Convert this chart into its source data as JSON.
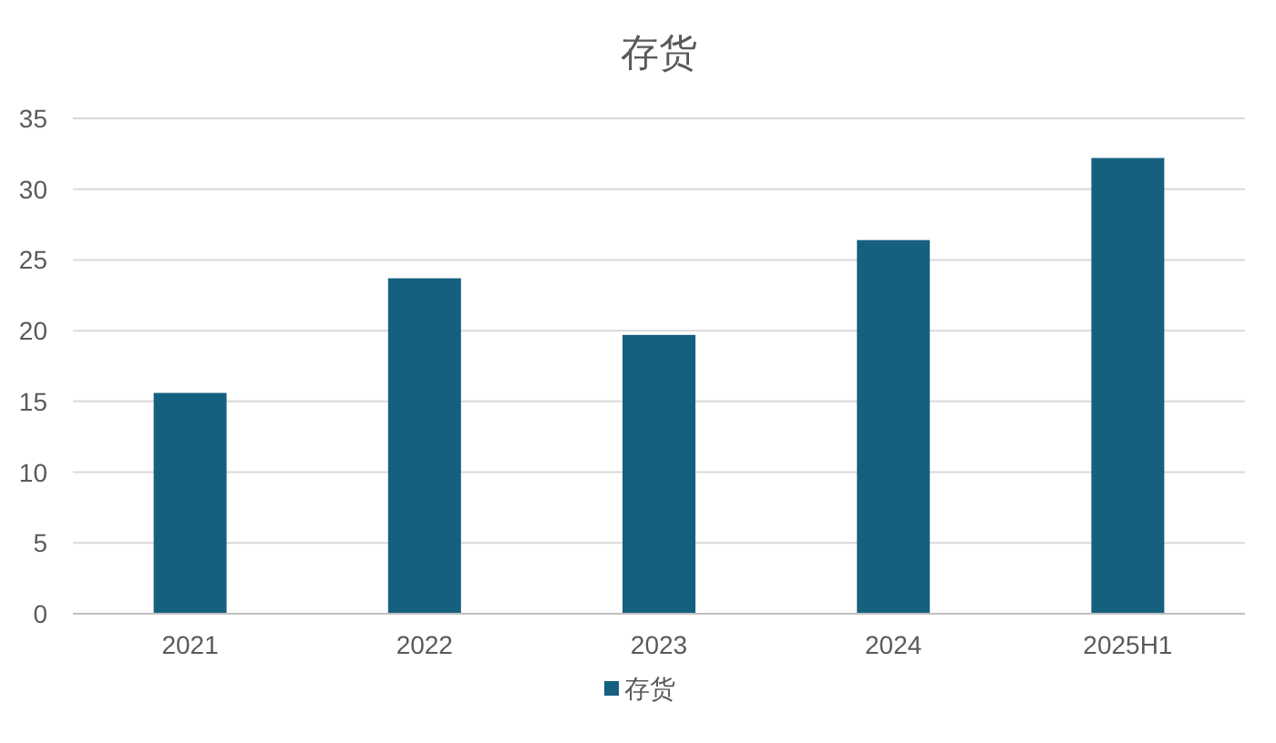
{
  "chart_data": {
    "type": "bar",
    "title": "存货",
    "categories": [
      "2021",
      "2022",
      "2023",
      "2024",
      "2025H1"
    ],
    "series": [
      {
        "name": "存货",
        "color": "#16607f",
        "values": [
          15.6,
          23.7,
          19.7,
          26.4,
          32.2
        ]
      }
    ],
    "ylim": [
      0,
      35
    ],
    "yticks": [
      0,
      5,
      10,
      15,
      20,
      25,
      30,
      35
    ],
    "grid": "y",
    "legend": "bottom"
  }
}
